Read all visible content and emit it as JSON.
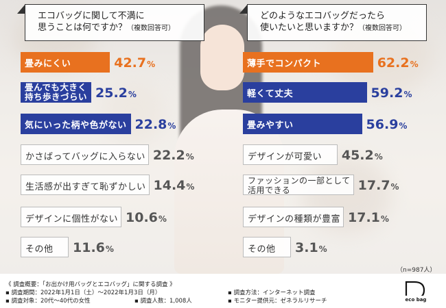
{
  "chart_data": [
    {
      "type": "bar",
      "orientation": "horizontal",
      "title": "エコバッグに関して不満に思うことは何ですか？",
      "title_note": "（複数回答可）",
      "title_line1": "エコバッグに関して不満に",
      "title_line2": "思うことは何ですか？",
      "categories": [
        "畳みにくい",
        "畳んでも大きく持ち歩きづらい",
        "気にいった柄や色がない",
        "かさばってバッグに入らない",
        "生活感が出すぎて恥ずかしい",
        "デザインに個性がない",
        "その他"
      ],
      "label_lines": [
        [
          "畳みにくい"
        ],
        [
          "畳んでも大きく",
          "持ち歩きづらい"
        ],
        [
          "気にいった柄や色がない"
        ],
        [
          "かさばってバッグに入らない"
        ],
        [
          "生活感が出すぎて恥ずかしい"
        ],
        [
          "デザインに個性がない"
        ],
        [
          "その他"
        ]
      ],
      "values": [
        42.7,
        25.2,
        22.8,
        22.2,
        14.4,
        10.6,
        11.6
      ],
      "value_labels": [
        "42.7",
        "25.2",
        "22.8",
        "22.2",
        "14.4",
        "10.6",
        "11.6"
      ],
      "unit": "%",
      "highlight": [
        "orange",
        "blue",
        "blue",
        "none",
        "none",
        "none",
        "none"
      ]
    },
    {
      "type": "bar",
      "orientation": "horizontal",
      "title": "どのようなエコバッグだったら使いたいと思いますか？",
      "title_note": "（複数回答可）",
      "title_line1": "どのようなエコバッグだったら",
      "title_line2": "使いたいと思いますか？",
      "categories": [
        "薄手でコンパクト",
        "軽くて丈夫",
        "畳みやすい",
        "デザインが可愛い",
        "ファッションの一部として活用できる",
        "デザインの種類が豊富",
        "その他"
      ],
      "label_lines": [
        [
          "薄手でコンパクト"
        ],
        [
          "軽くて丈夫"
        ],
        [
          "畳みやすい"
        ],
        [
          "デザインが可愛い"
        ],
        [
          "ファッションの一部として",
          "活用できる"
        ],
        [
          "デザインの種類が豊富"
        ],
        [
          "その他"
        ]
      ],
      "values": [
        62.2,
        59.2,
        56.9,
        45.2,
        17.7,
        17.1,
        3.1
      ],
      "value_labels": [
        "62.2",
        "59.2",
        "56.9",
        "45.2",
        "17.7",
        "17.1",
        "3.1"
      ],
      "unit": "%",
      "highlight": [
        "orange",
        "blue",
        "blue",
        "none",
        "none",
        "none",
        "none"
      ]
    }
  ],
  "sample_note": "（n=987人）",
  "footer": {
    "line1": "《 調査概要：「お出かけ用バッグとエコバッグ」に関する調査 》",
    "period": "▪ 調査期間：2022年1月1日（土）〜2022年1月3日（月）",
    "target": "▪ 調査対象：20代〜40代の女性",
    "count": "▪ 調査人数：1,008人",
    "method": "▪ 調査方法：インターネット調査",
    "provider": "▪ モニター提供元：ゼネラルリサーチ"
  },
  "logo_text": "eco bag",
  "colors": {
    "orange": "#e8711f",
    "blue": "#2a3f9e",
    "gray_text": "#555555"
  }
}
